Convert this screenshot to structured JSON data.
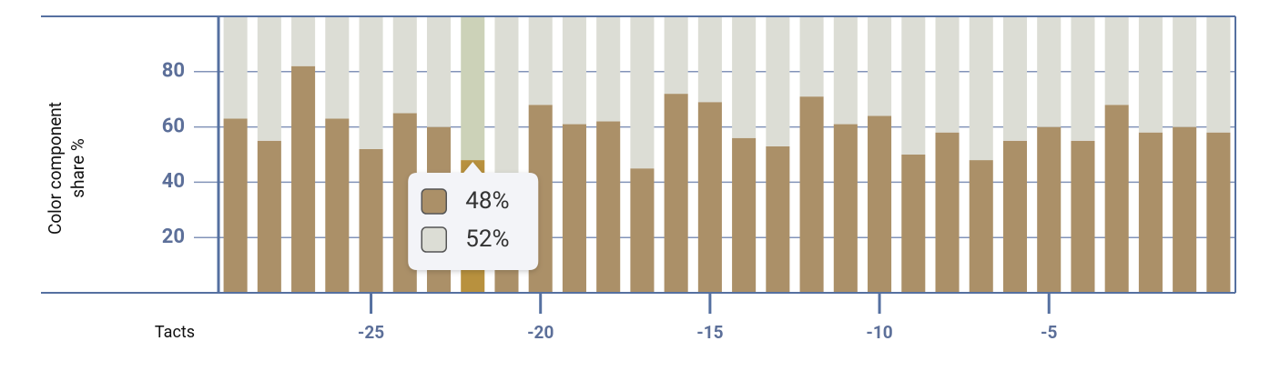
{
  "chart_data": {
    "type": "stacked_bar",
    "y_label": [
      "Color component",
      "share %"
    ],
    "x_label": "Tacts",
    "x": [
      -29,
      -28,
      -27,
      -26,
      -25,
      -24,
      -23,
      -22,
      -21,
      -20,
      -19,
      -18,
      -17,
      -16,
      -15,
      -14,
      -13,
      -12,
      -11,
      -10,
      -9,
      -8,
      -7,
      -6,
      -5,
      -4,
      -3,
      -2,
      -1,
      0
    ],
    "series": [
      {
        "color": "#ab9068",
        "values": [
          63,
          55,
          82,
          63,
          52,
          65,
          60,
          48,
          40,
          68,
          61,
          62,
          45,
          72,
          69,
          56,
          53,
          71,
          61,
          64,
          50,
          58,
          48,
          55,
          60,
          55,
          68,
          58,
          60,
          58
        ],
        "value_labels": [
          null,
          null,
          null,
          null,
          null,
          null,
          null,
          "48%",
          null,
          null,
          null,
          null,
          null,
          null,
          null,
          null,
          null,
          null,
          null,
          null,
          null,
          null,
          null,
          null,
          null,
          null,
          null,
          null,
          null,
          null
        ]
      },
      {
        "color": "#dcddd5",
        "values": [
          37,
          45,
          18,
          37,
          48,
          35,
          40,
          52,
          60,
          32,
          39,
          38,
          55,
          28,
          31,
          44,
          47,
          29,
          39,
          36,
          50,
          42,
          52,
          45,
          40,
          45,
          32,
          42,
          40,
          42
        ],
        "value_labels": [
          null,
          null,
          null,
          null,
          null,
          null,
          null,
          "52%",
          null,
          null,
          null,
          null,
          null,
          null,
          null,
          null,
          null,
          null,
          null,
          null,
          null,
          null,
          null,
          null,
          null,
          null,
          null,
          null,
          null,
          null
        ]
      }
    ],
    "highlight_x": -22,
    "highlight_colors": [
      "#b8913e",
      "#ccd2b8"
    ],
    "xlim": [
      -29.5,
      0.5
    ],
    "ylim": [
      0,
      100
    ],
    "xticks": [
      -25,
      -20,
      -15,
      -10,
      -5
    ],
    "yticks": [
      20,
      40,
      60,
      80
    ],
    "grid": true
  }
}
